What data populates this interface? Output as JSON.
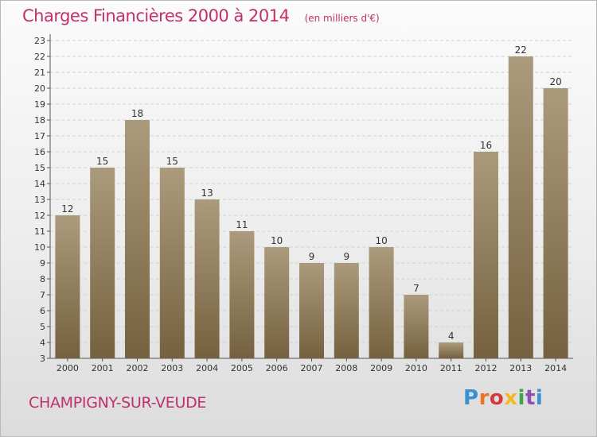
{
  "chart_data": {
    "type": "bar",
    "title": "Charges Financières 2000 à 2014",
    "unit_note": "(en milliers d'€)",
    "categories": [
      "2000",
      "2001",
      "2002",
      "2003",
      "2004",
      "2005",
      "2006",
      "2007",
      "2008",
      "2009",
      "2010",
      "2011",
      "2012",
      "2013",
      "2014"
    ],
    "values": [
      12,
      15,
      18,
      15,
      13,
      11,
      10,
      9,
      9,
      10,
      7,
      4,
      16,
      22,
      20
    ],
    "ylim": [
      3,
      23
    ],
    "yticks": [
      3,
      4,
      5,
      6,
      7,
      8,
      9,
      10,
      11,
      12,
      13,
      14,
      15,
      16,
      17,
      18,
      19,
      20,
      21,
      22,
      23
    ],
    "grid": true,
    "bar_color_top": "#ab9a7c",
    "bar_color_bottom": "#75613f",
    "title_color": "#c0306a"
  },
  "footer": {
    "commune": "CHAMPIGNY-SUR-VEUDE",
    "logo_text": "Proxiti",
    "logo_colors": [
      "#3a8fd0",
      "#e8732a",
      "#d63a3a",
      "#f2b81e",
      "#3aa54a",
      "#8d4fb0",
      "#3a8fd0"
    ]
  }
}
